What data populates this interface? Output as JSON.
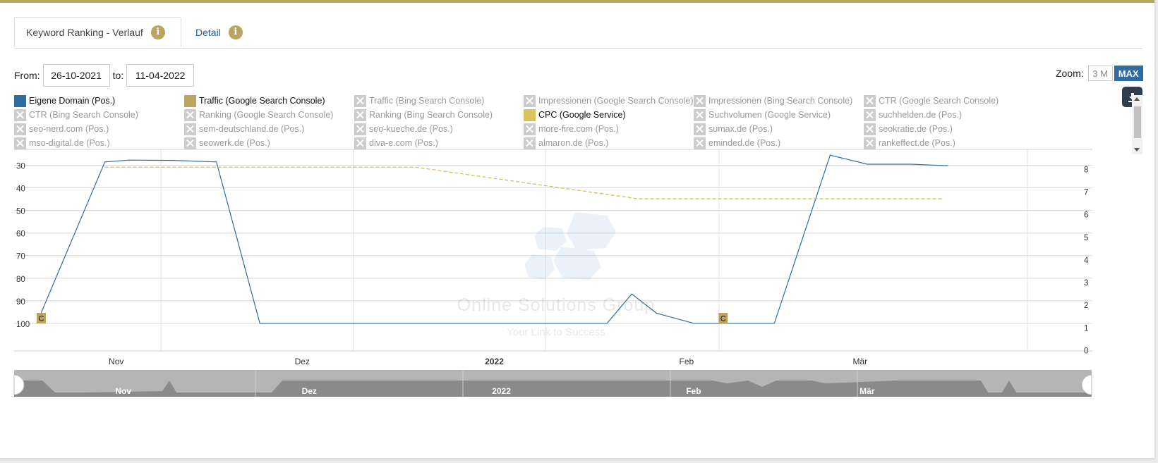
{
  "tabs": [
    {
      "label": "Keyword Ranking - Verlauf",
      "info": "i"
    },
    {
      "label": "Detail",
      "info": "i"
    }
  ],
  "date_range": {
    "from_label": "From:",
    "from_value": "26-10-2021",
    "to_label": "to:",
    "to_value": "11-04-2022"
  },
  "zoom": {
    "label": "Zoom:",
    "options": [
      "3 M",
      "MAX"
    ],
    "selected": "MAX"
  },
  "download": {
    "icon": "download-icon"
  },
  "legend": [
    {
      "label": "Eigene Domain (Pos.)",
      "enabled": true,
      "color": "#336a9d"
    },
    {
      "label": "Traffic (Google Search Console)",
      "enabled": true,
      "color": "#b9a55d"
    },
    {
      "label": "Traffic (Bing Search Console)",
      "enabled": false
    },
    {
      "label": "Impressionen (Google Search Console)",
      "enabled": false
    },
    {
      "label": "Impressionen (Bing Search Console)",
      "enabled": false
    },
    {
      "label": "CTR (Google Search Console)",
      "enabled": false
    },
    {
      "label": "CTR (Bing Search Console)",
      "enabled": false
    },
    {
      "label": "Ranking (Google Search Console)",
      "enabled": false
    },
    {
      "label": "Ranking (Bing Search Console)",
      "enabled": false
    },
    {
      "label": "CPC (Google Service)",
      "enabled": true,
      "color": "#d8c25c"
    },
    {
      "label": "Suchvolumen (Google Service)",
      "enabled": false
    },
    {
      "label": "suchhelden.de (Pos.)",
      "enabled": false
    },
    {
      "label": "seo-nerd.com (Pos.)",
      "enabled": false
    },
    {
      "label": "sem-deutschland.de (Pos.)",
      "enabled": false
    },
    {
      "label": "seo-kueche.de (Pos.)",
      "enabled": false
    },
    {
      "label": "more-fire.com (Pos.)",
      "enabled": false
    },
    {
      "label": "sumax.de (Pos.)",
      "enabled": false
    },
    {
      "label": "seokratie.de (Pos.)",
      "enabled": false
    },
    {
      "label": "mso-digital.de (Pos.)",
      "enabled": false
    },
    {
      "label": "seowerk.de (Pos.)",
      "enabled": false
    },
    {
      "label": "diva-e.com (Pos.)",
      "enabled": false
    },
    {
      "label": "almaron.de (Pos.)",
      "enabled": false
    },
    {
      "label": "eminded.de (Pos.)",
      "enabled": false
    },
    {
      "label": "rankeffect.de (Pos.)",
      "enabled": false
    }
  ],
  "watermark": {
    "company": "Online Solutions Group",
    "slogan": "Your Link to Success"
  },
  "chart_data": {
    "type": "line",
    "x_range": [
      "2021-10-26",
      "2022-04-11"
    ],
    "x_ticks": [
      {
        "date": "2021-11-01",
        "label": "Nov"
      },
      {
        "date": "2021-12-01",
        "label": "Dez"
      },
      {
        "date": "2022-01-01",
        "label": "2022",
        "bold": true
      },
      {
        "date": "2022-02-01",
        "label": "Feb"
      },
      {
        "date": "2022-03-01",
        "label": "Mär"
      }
    ],
    "y_left": {
      "min": 27,
      "max": 107,
      "reversed": true,
      "ticks": [
        30,
        40,
        50,
        60,
        70,
        80,
        90,
        100
      ]
    },
    "y_right": {
      "min": 0,
      "max": 8,
      "ticks": [
        0,
        1,
        2,
        3,
        4,
        5,
        6,
        7,
        8
      ]
    },
    "grid": true,
    "series": [
      {
        "name": "Eigene Domain (Pos.)",
        "axis": "left",
        "style": "solid",
        "color": "#336a9d",
        "points": [
          [
            "2021-10-26",
            100
          ],
          [
            "2021-11-06",
            28.5
          ],
          [
            "2021-11-10",
            27.7
          ],
          [
            "2021-11-17",
            27.8
          ],
          [
            "2021-11-24",
            28.5
          ],
          [
            "2021-12-01",
            100
          ],
          [
            "2022-01-26",
            100
          ],
          [
            "2022-01-30",
            87
          ],
          [
            "2022-02-03",
            95.5
          ],
          [
            "2022-02-09",
            100
          ],
          [
            "2022-02-22",
            100
          ],
          [
            "2022-03-03",
            25.5
          ],
          [
            "2022-03-09",
            29.5
          ],
          [
            "2022-03-16",
            29.5
          ],
          [
            "2022-03-22",
            30.2
          ]
        ]
      },
      {
        "name": "CPC (Google Service)",
        "axis": "right",
        "style": "dashed",
        "color": "#c9bd52",
        "points": [
          [
            "2021-11-06",
            8.1
          ],
          [
            "2021-12-26",
            8.1
          ],
          [
            "2022-01-31",
            6.7
          ],
          [
            "2022-03-21",
            6.7
          ]
        ]
      }
    ],
    "annotations": [
      {
        "date": "2021-10-26",
        "label": "C"
      },
      {
        "date": "2022-02-13",
        "label": "C"
      }
    ]
  },
  "navigator": {
    "labels": [
      {
        "date": "2021-11-01",
        "label": "Nov"
      },
      {
        "date": "2021-12-01",
        "label": "Dez"
      },
      {
        "date": "2022-01-01",
        "label": "2022"
      },
      {
        "date": "2022-02-01",
        "label": "Feb"
      },
      {
        "date": "2022-03-01",
        "label": "Mär"
      }
    ]
  }
}
